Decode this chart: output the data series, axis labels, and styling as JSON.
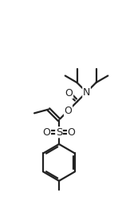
{
  "bg_color": "#ffffff",
  "line_color": "#222222",
  "line_width": 1.6,
  "fig_width": 1.48,
  "fig_height": 2.46,
  "dpi": 100,
  "xlim": [
    0,
    10
  ],
  "ylim": [
    0,
    16.6
  ]
}
